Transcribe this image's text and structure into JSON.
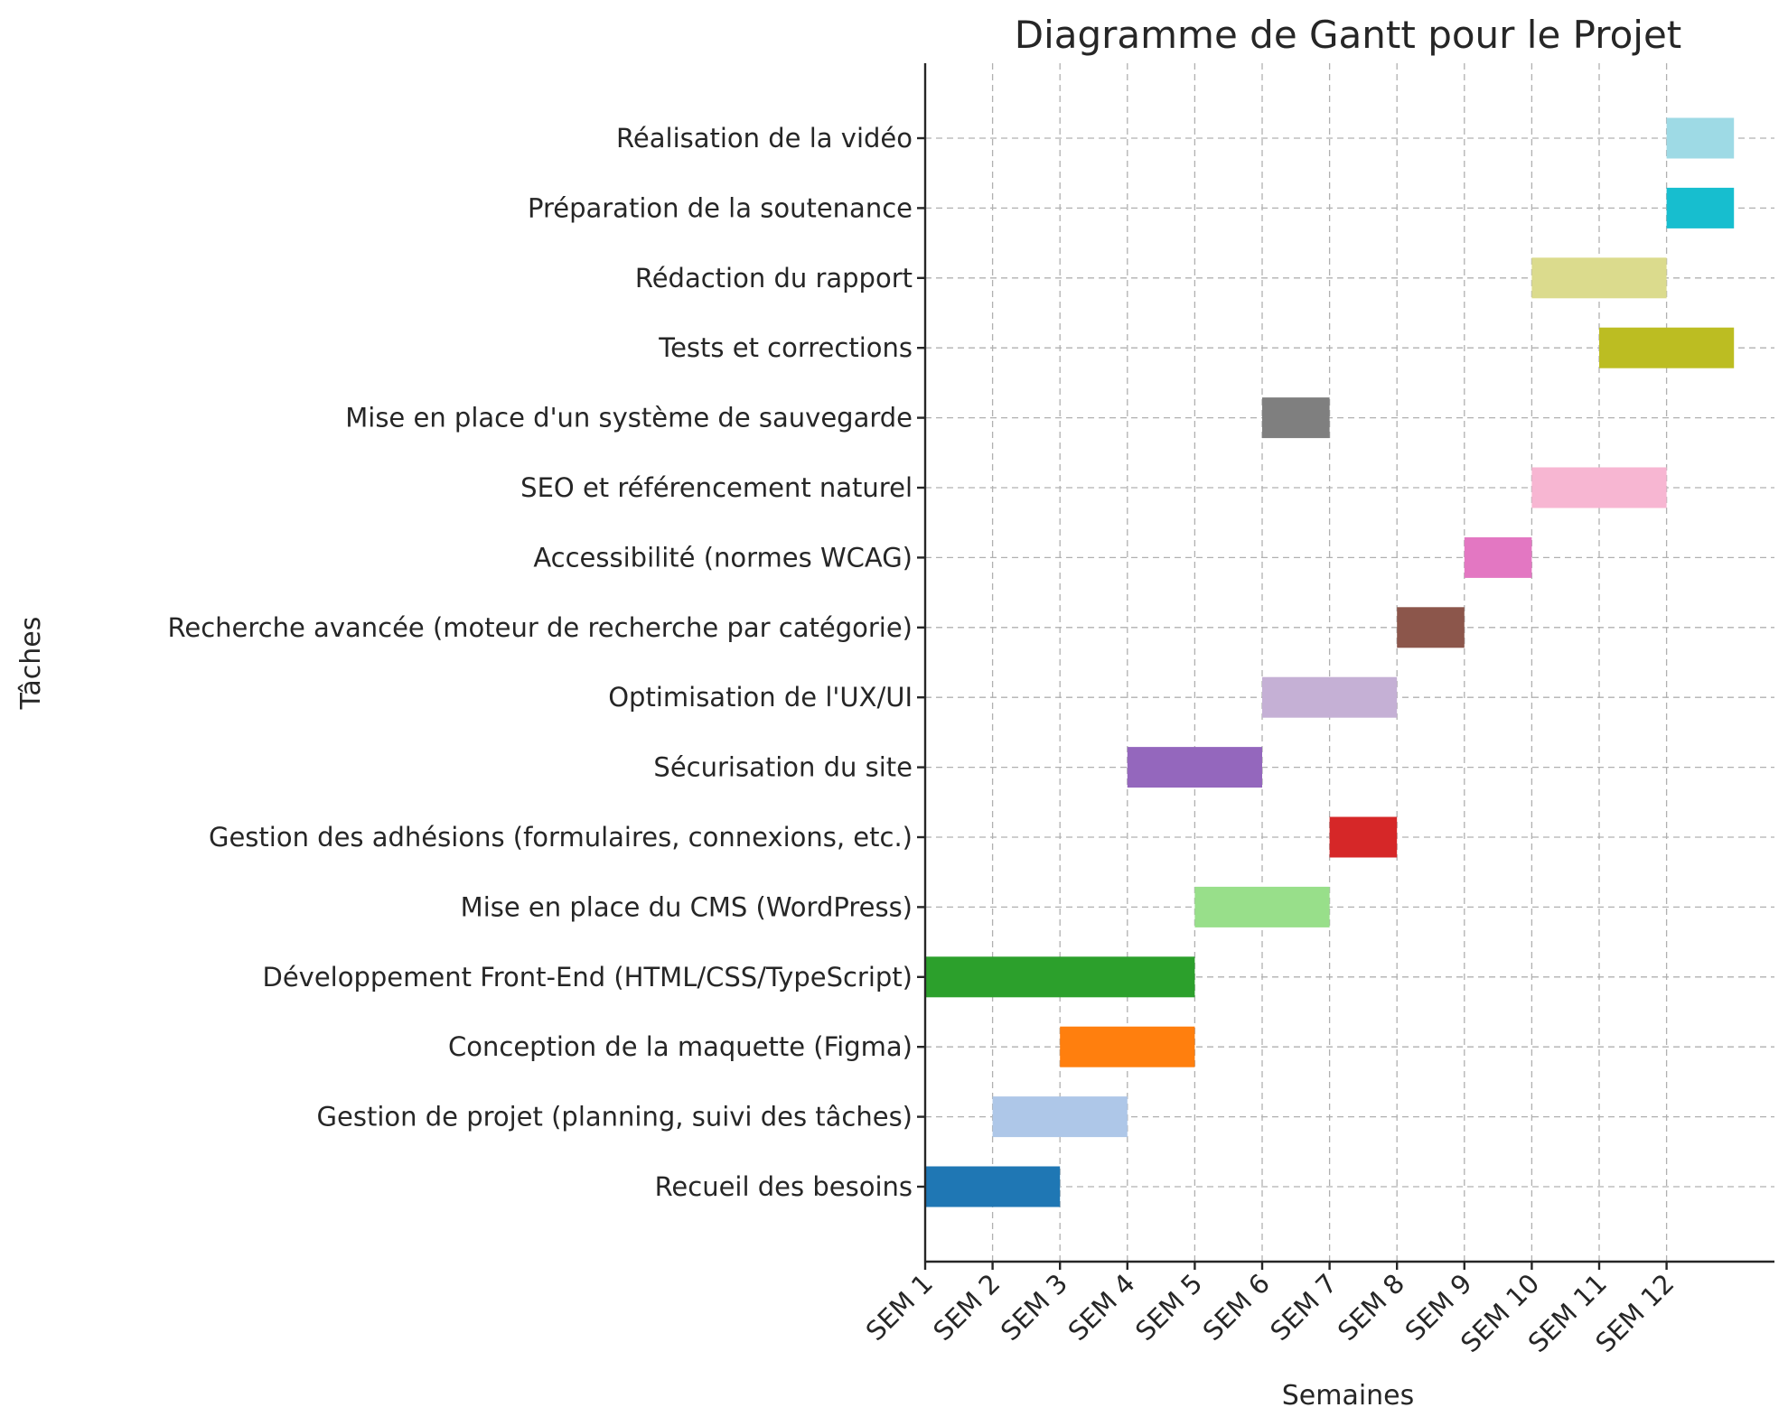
{
  "chart_data": {
    "type": "bar",
    "orientation": "horizontal",
    "subtype": "gantt",
    "title": "Diagramme de Gantt pour le Projet",
    "xlabel": "Semaines",
    "ylabel": "Tâches",
    "xticks": [
      1,
      2,
      3,
      4,
      5,
      6,
      7,
      8,
      9,
      10,
      11,
      12
    ],
    "xtick_labels": [
      "SEM 1",
      "SEM 2",
      "SEM 3",
      "SEM 4",
      "SEM 5",
      "SEM 6",
      "SEM 7",
      "SEM 8",
      "SEM 9",
      "SEM 10",
      "SEM 11",
      "SEM 12"
    ],
    "xlim": [
      1,
      13.6
    ],
    "grid": true,
    "tasks": [
      {
        "name": "Recueil des besoins",
        "start": 1,
        "duration": 2,
        "color": "#1f77b4"
      },
      {
        "name": "Gestion de projet (planning, suivi des tâches)",
        "start": 2,
        "duration": 2,
        "color": "#aec7e8"
      },
      {
        "name": "Conception de la maquette (Figma)",
        "start": 3,
        "duration": 2,
        "color": "#ff7f0e"
      },
      {
        "name": "Développement Front-End (HTML/CSS/TypeScript)",
        "start": 1,
        "duration": 4,
        "color": "#2ca02c"
      },
      {
        "name": "Mise en place du CMS (WordPress)",
        "start": 5,
        "duration": 2,
        "color": "#98df8a"
      },
      {
        "name": "Gestion des adhésions (formulaires, connexions, etc.)",
        "start": 7,
        "duration": 1,
        "color": "#d62728"
      },
      {
        "name": "Sécurisation du site",
        "start": 4,
        "duration": 2,
        "color": "#9467bd"
      },
      {
        "name": "Optimisation de l'UX/UI",
        "start": 6,
        "duration": 2,
        "color": "#c5b0d5"
      },
      {
        "name": "Recherche avancée (moteur de recherche par catégorie)",
        "start": 8,
        "duration": 1,
        "color": "#8c564b"
      },
      {
        "name": "Accessibilité (normes WCAG)",
        "start": 9,
        "duration": 1,
        "color": "#e377c2"
      },
      {
        "name": "SEO et référencement naturel",
        "start": 10,
        "duration": 2,
        "color": "#f7b6d2"
      },
      {
        "name": "Mise en place d'un système de sauvegarde",
        "start": 6,
        "duration": 1,
        "color": "#7f7f7f"
      },
      {
        "name": "Tests et corrections",
        "start": 11,
        "duration": 2,
        "color": "#bcbd22"
      },
      {
        "name": "Rédaction du rapport",
        "start": 10,
        "duration": 2,
        "color": "#dbdb8d"
      },
      {
        "name": "Préparation de la soutenance",
        "start": 12,
        "duration": 1,
        "color": "#17becf"
      },
      {
        "name": "Réalisation de la vidéo",
        "start": 12,
        "duration": 1,
        "color": "#9edae5"
      }
    ]
  }
}
